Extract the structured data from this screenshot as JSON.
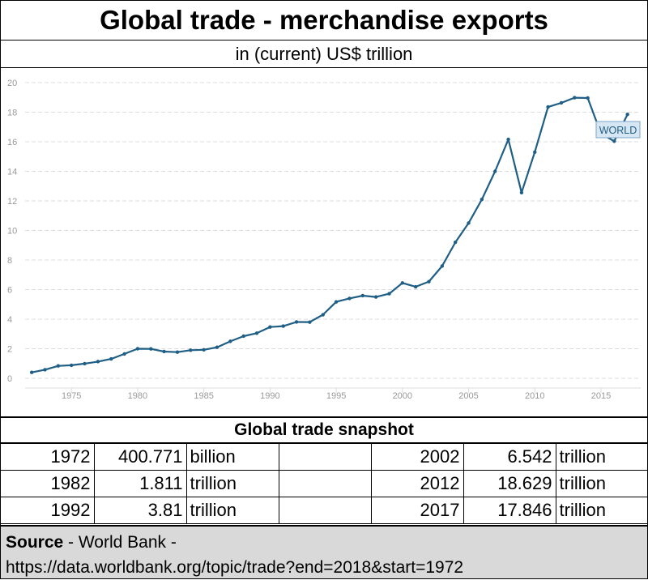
{
  "header": {
    "title": "Global trade - merchandise exports",
    "subtitle": "in (current) US$ trillion"
  },
  "chart_data": {
    "type": "line",
    "series": [
      {
        "name": "WORLD",
        "color": "#1f5e85",
        "x": [
          1972,
          1973,
          1974,
          1975,
          1976,
          1977,
          1978,
          1979,
          1980,
          1981,
          1982,
          1983,
          1984,
          1985,
          1986,
          1987,
          1988,
          1989,
          1990,
          1991,
          1992,
          1993,
          1994,
          1995,
          1996,
          1997,
          1998,
          1999,
          2000,
          2001,
          2002,
          2003,
          2004,
          2005,
          2006,
          2007,
          2008,
          2009,
          2010,
          2011,
          2012,
          2013,
          2014,
          2015,
          2016,
          2017
        ],
        "values": [
          0.4,
          0.58,
          0.84,
          0.88,
          0.99,
          1.13,
          1.31,
          1.65,
          2.0,
          1.99,
          1.81,
          1.77,
          1.9,
          1.93,
          2.1,
          2.5,
          2.85,
          3.05,
          3.47,
          3.53,
          3.81,
          3.8,
          4.3,
          5.17,
          5.4,
          5.59,
          5.5,
          5.72,
          6.45,
          6.19,
          6.54,
          7.59,
          9.2,
          10.5,
          12.1,
          14.0,
          16.16,
          12.56,
          15.3,
          18.35,
          18.63,
          18.98,
          18.96,
          16.55,
          16.04,
          17.85
        ]
      }
    ],
    "ylim": [
      0,
      20
    ],
    "yticks": [
      0,
      2,
      4,
      6,
      8,
      10,
      12,
      14,
      16,
      18,
      20
    ],
    "xlim": [
      1971.5,
      2018
    ],
    "xticks": [
      1975,
      1980,
      1985,
      1990,
      1995,
      2000,
      2005,
      2010,
      2015
    ],
    "grid": true,
    "series_label": "WORLD",
    "colors": {
      "line": "#1f5e85",
      "grid": "#dcdcdc",
      "tick_text": "#999999",
      "label_bg": "#d6e6f2",
      "label_border": "#7aa6c8"
    }
  },
  "snapshot": {
    "title": "Global trade snapshot",
    "rows": [
      {
        "left_year": "1972",
        "left_value": "400.771",
        "left_unit": "billion",
        "right_year": "2002",
        "right_value": "6.542",
        "right_unit": "trillion"
      },
      {
        "left_year": "1982",
        "left_value": "1.811",
        "left_unit": "trillion",
        "right_year": "2012",
        "right_value": "18.629",
        "right_unit": "trillion"
      },
      {
        "left_year": "1992",
        "left_value": "3.81",
        "left_unit": "trillion",
        "right_year": "2017",
        "right_value": "17.846",
        "right_unit": "trillion"
      }
    ]
  },
  "source": {
    "label": "Source",
    "text": " - World Bank -",
    "url": "https://data.worldbank.org/topic/trade?end=2018&start=1972"
  }
}
